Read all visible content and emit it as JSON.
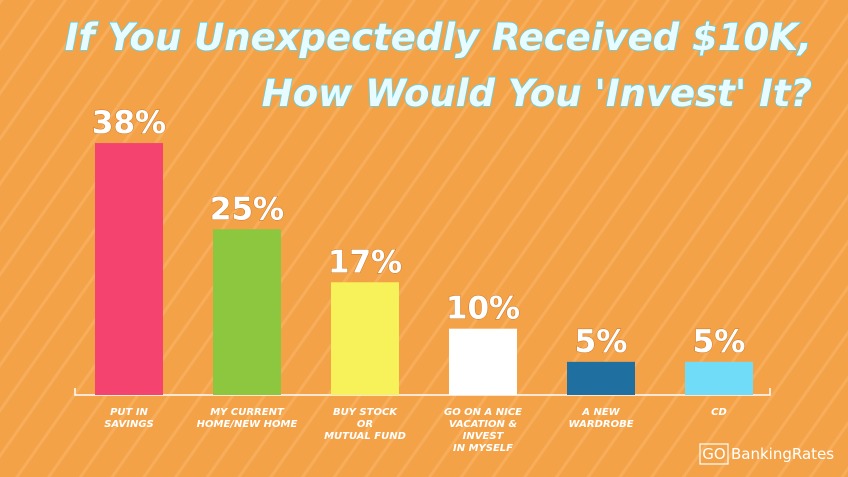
{
  "chart_data": {
    "type": "bar",
    "title_lines": [
      "If You Unexpectedly Received $10K,",
      "How Would You 'Invest' It?"
    ],
    "categories": [
      [
        "PUT IN",
        "SAVINGS"
      ],
      [
        "MY CURRENT",
        "HOME/NEW HOME"
      ],
      [
        "BUY STOCK",
        "OR",
        "MUTUAL FUND"
      ],
      [
        "GO ON A NICE",
        "VACATION &",
        "INVEST",
        "IN MYSELF"
      ],
      [
        "A NEW",
        "WARDROBE"
      ],
      [
        "CD"
      ]
    ],
    "values": [
      38,
      25,
      17,
      10,
      5,
      5
    ],
    "value_labels": [
      "38%",
      "25%",
      "17%",
      "10%",
      "5%",
      "5%"
    ],
    "colors": [
      "#f4436f",
      "#8dc63f",
      "#f7f25a",
      "#ffffff",
      "#1f6fa0",
      "#70dcf7"
    ]
  },
  "logo": {
    "mark": "GO",
    "text": "BankingRates"
  }
}
